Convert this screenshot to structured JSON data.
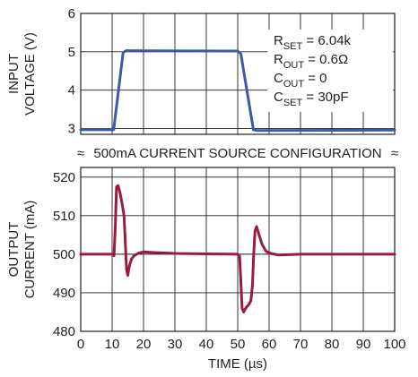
{
  "chart_data": [
    {
      "type": "line",
      "ylabel_lines": [
        "INPUT",
        "VOLTAGE (V)"
      ],
      "xlim": [
        0,
        100
      ],
      "ylim": [
        2.85,
        6
      ],
      "y_ticks": [
        3,
        4,
        5,
        6
      ],
      "grid": true,
      "annotations": [
        {
          "main": "R",
          "sub": "SET",
          "rest": " = 6.04k"
        },
        {
          "main": "R",
          "sub": "OUT",
          "rest": " = 0.6Ω"
        },
        {
          "main": "C",
          "sub": "OUT",
          "rest": " = 0"
        },
        {
          "main": "C",
          "sub": "SET",
          "rest": " = 30pF"
        }
      ],
      "series": [
        {
          "color": "#3a5aa8",
          "x": [
            0,
            10.5,
            13.5,
            14.5,
            50,
            51,
            55,
            56,
            100
          ],
          "y": [
            2.97,
            2.97,
            4.98,
            5.03,
            5.02,
            4.95,
            2.97,
            2.95,
            2.96
          ]
        }
      ]
    },
    {
      "type": "line",
      "xlabel": "TIME (µs)",
      "ylabel_lines": [
        "OUTPUT",
        "CURRENT (mA)"
      ],
      "xlim": [
        0,
        100
      ],
      "ylim": [
        480,
        522.5
      ],
      "x_ticks": [
        0,
        10,
        20,
        30,
        40,
        50,
        60,
        70,
        80,
        90,
        100
      ],
      "y_ticks": [
        480,
        490,
        500,
        510,
        520
      ],
      "grid": true,
      "series": [
        {
          "color": "#9b1b3c",
          "x": [
            0,
            10,
            10.6,
            11,
            11.4,
            11.9,
            12.5,
            13.2,
            13.8,
            14.2,
            14.6,
            15,
            15.5,
            16.2,
            17,
            18.5,
            20,
            22,
            30,
            40,
            50,
            50.6,
            51,
            51.4,
            51.9,
            52.4,
            53,
            53.6,
            54.2,
            54.7,
            55.1,
            55.5,
            56,
            56.8,
            57.8,
            59,
            60.5,
            63,
            70,
            80,
            90,
            100
          ],
          "y": [
            500,
            500,
            499.6,
            507,
            517.5,
            517.8,
            516,
            513,
            510,
            503,
            496,
            494.5,
            497,
            498.8,
            499.6,
            500.3,
            500.6,
            500.5,
            500.2,
            500.1,
            500,
            499.5,
            493,
            486,
            485,
            485.8,
            486.5,
            487,
            488,
            492,
            500,
            506,
            507.2,
            505,
            502.5,
            500.8,
            500.2,
            499.8,
            500,
            500,
            500,
            500
          ]
        }
      ]
    }
  ],
  "separator": {
    "symbol": "≈",
    "text": "500mA CURRENT SOURCE CONFIGURATION"
  }
}
